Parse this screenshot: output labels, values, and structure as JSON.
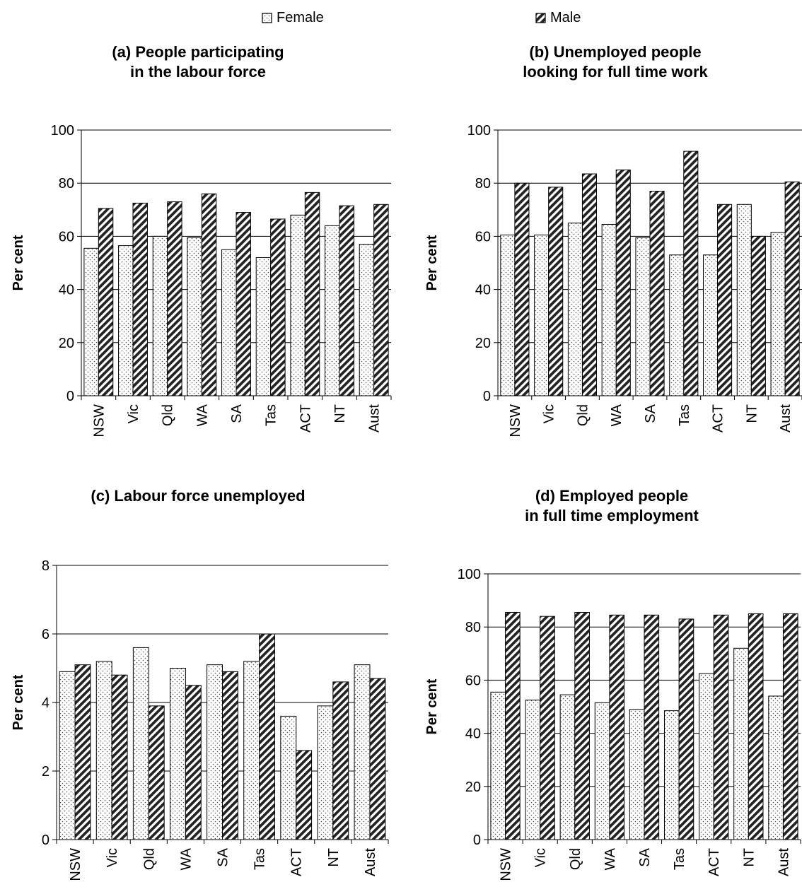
{
  "legend": {
    "female_label": "Female",
    "male_label": "Male"
  },
  "chart_data": [
    {
      "type": "bar",
      "title": "(a) People participating\nin the labour force",
      "ylabel": "Per cent",
      "ylim": [
        0,
        100
      ],
      "yticks": [
        0,
        20,
        40,
        60,
        80,
        100
      ],
      "grid": true,
      "categories": [
        "NSW",
        "Vic",
        "Qld",
        "WA",
        "SA",
        "Tas",
        "ACT",
        "NT",
        "Aust"
      ],
      "series": [
        {
          "name": "Female",
          "values": [
            55.5,
            56.5,
            60,
            59.5,
            55,
            52,
            68,
            64,
            57
          ]
        },
        {
          "name": "Male",
          "values": [
            70.5,
            72.5,
            73,
            76,
            69,
            66.5,
            76.5,
            71.5,
            72
          ]
        }
      ]
    },
    {
      "type": "bar",
      "title": "(b) Unemployed people\nlooking for full time work",
      "ylabel": "Per cent",
      "ylim": [
        0,
        100
      ],
      "yticks": [
        0,
        20,
        40,
        60,
        80,
        100
      ],
      "grid": true,
      "categories": [
        "NSW",
        "Vic",
        "Qld",
        "WA",
        "SA",
        "Tas",
        "ACT",
        "NT",
        "Aust"
      ],
      "series": [
        {
          "name": "Female",
          "values": [
            60.5,
            60.5,
            65,
            64.5,
            59.5,
            53,
            53,
            72,
            61.5
          ]
        },
        {
          "name": "Male",
          "values": [
            80,
            78.5,
            83.5,
            85,
            77,
            92,
            72,
            60,
            80.5
          ]
        }
      ]
    },
    {
      "type": "bar",
      "title": "(c) Labour force unemployed",
      "ylabel": "Per cent",
      "ylim": [
        0,
        8
      ],
      "yticks": [
        0,
        2,
        4,
        6,
        8
      ],
      "grid": true,
      "categories": [
        "NSW",
        "Vic",
        "Qld",
        "WA",
        "SA",
        "Tas",
        "ACT",
        "NT",
        "Aust"
      ],
      "series": [
        {
          "name": "Female",
          "values": [
            4.9,
            5.2,
            5.6,
            5.0,
            5.1,
            5.2,
            3.6,
            3.9,
            5.1
          ]
        },
        {
          "name": "Male",
          "values": [
            5.1,
            4.8,
            3.9,
            4.5,
            4.9,
            6.0,
            2.6,
            4.6,
            4.7
          ]
        }
      ]
    },
    {
      "type": "bar",
      "title": "(d) Employed people\nin full time employment",
      "ylabel": "Per cent",
      "ylim": [
        0,
        100
      ],
      "yticks": [
        0,
        20,
        40,
        60,
        80,
        100
      ],
      "grid": true,
      "categories": [
        "NSW",
        "Vic",
        "Qld",
        "WA",
        "SA",
        "Tas",
        "ACT",
        "NT",
        "Aust"
      ],
      "series": [
        {
          "name": "Female",
          "values": [
            55.5,
            52.5,
            54.5,
            51.5,
            49,
            48.5,
            62.5,
            72,
            54
          ]
        },
        {
          "name": "Male",
          "values": [
            85.5,
            84,
            85.5,
            84.5,
            84.5,
            83,
            84.5,
            85,
            85
          ]
        }
      ]
    }
  ]
}
